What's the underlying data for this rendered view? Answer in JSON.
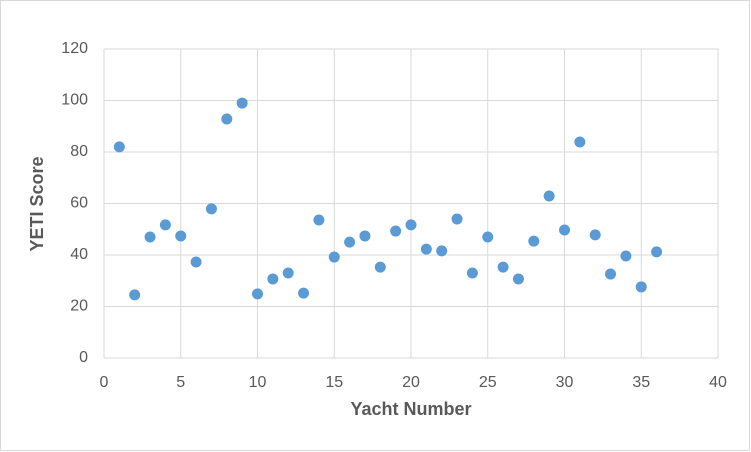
{
  "chart_data": {
    "type": "scatter",
    "x_label": "Yacht Number",
    "y_label": "YETI Score",
    "series": [
      {
        "color": "#5b9bd5",
        "x": [
          1,
          2,
          3,
          4,
          5,
          6,
          7,
          8,
          9,
          10,
          11,
          12,
          13,
          14,
          15,
          16,
          17,
          18,
          19,
          20,
          21,
          22,
          23,
          24,
          25,
          26,
          27,
          28,
          29,
          30,
          31,
          32,
          33,
          34,
          35,
          36
        ],
        "values": [
          82,
          24.5,
          47,
          51.7,
          47.4,
          37.3,
          57.9,
          92.8,
          99,
          24.9,
          30.7,
          33,
          25.2,
          53.6,
          39.2,
          45,
          47.4,
          35.3,
          49.3,
          51.7,
          42.3,
          41.6,
          54,
          33,
          47,
          35.3,
          30.7,
          45.4,
          62.9,
          49.7,
          83.9,
          47.8,
          32.6,
          39.6,
          27.6,
          41.2
        ]
      }
    ],
    "xlim": [
      0,
      40
    ],
    "xticks": [
      0,
      5,
      10,
      15,
      20,
      25,
      30,
      35,
      40
    ],
    "ylim": [
      0,
      120
    ],
    "yticks": [
      0,
      20,
      40,
      60,
      80,
      100,
      120
    ],
    "grid": true
  }
}
